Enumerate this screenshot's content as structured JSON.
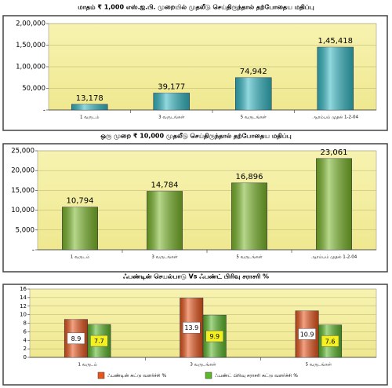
{
  "chart_data": [
    {
      "type": "bar",
      "title": "மாதம் ₹ 1,000 எஸ்.ஐ.பி. முறையில்  முதலீடு செய்திருந்தால் தற்போதைய மதிப்பு",
      "categories": [
        "1 வருடம்",
        "3 வருடங்கள்",
        "5 வருடங்கள்",
        "ஆரம்பம் முதல் 1-2-04"
      ],
      "values": [
        13178,
        39177,
        74942,
        145418
      ],
      "value_labels": [
        "13,178",
        "39,177",
        "74,942",
        "1,45,418"
      ],
      "color": "#35b9c4",
      "ylim": [
        0,
        200000
      ],
      "yticks": [
        {
          "value": 0,
          "label": "-"
        },
        {
          "value": 50000,
          "label": "50,000"
        },
        {
          "value": 100000,
          "label": "1,00,000"
        },
        {
          "value": 150000,
          "label": "1,50,000"
        },
        {
          "value": 200000,
          "label": "2,00,000"
        }
      ],
      "grid": true
    },
    {
      "type": "bar",
      "title": "ஒரு முறை ₹ 10,000 முதலீடு செய்திருந்தால் தற்போதைய மதிப்பு",
      "categories": [
        "1 வருடம்",
        "3 வருடங்கள்",
        "5 வருடங்கள்",
        "ஆரம்பம் முதல் 1-2-04"
      ],
      "values": [
        10794,
        14784,
        16896,
        23061
      ],
      "value_labels": [
        "10,794",
        "14,784",
        "16,896",
        "23,061"
      ],
      "color": "#7cb82c",
      "ylim": [
        0,
        25000
      ],
      "yticks": [
        {
          "value": 0,
          "label": "-"
        },
        {
          "value": 5000,
          "label": "5,000"
        },
        {
          "value": 10000,
          "label": "10,000"
        },
        {
          "value": 15000,
          "label": "15,000"
        },
        {
          "value": 20000,
          "label": "20,000"
        },
        {
          "value": 25000,
          "label": "25,000"
        }
      ],
      "grid": true
    },
    {
      "type": "grouped_bar",
      "title": "ஃபண்டின் செயல்பாடு Vs ஃபண்ட் பிரிவு சராசரி %",
      "categories": [
        "1 வருடம்",
        "3 வருடங்கள்",
        "5 வருடங்கள்"
      ],
      "series": [
        {
          "name": "ஃபண்டின் சுட்டு வளர்ச்சி %",
          "color": "#e8561c",
          "values": [
            8.9,
            13.9,
            10.9
          ]
        },
        {
          "name": "ஃபண்ட் பிரிவு சராசரி சுட்டு வளர்ச்சி %",
          "color": "#5cb82a",
          "values": [
            7.7,
            9.9,
            7.6
          ]
        }
      ],
      "ylim": [
        0,
        16
      ],
      "yticks": [
        0,
        2,
        4,
        6,
        8,
        10,
        12,
        14,
        16
      ],
      "grid": true,
      "legend": "bottom"
    }
  ]
}
